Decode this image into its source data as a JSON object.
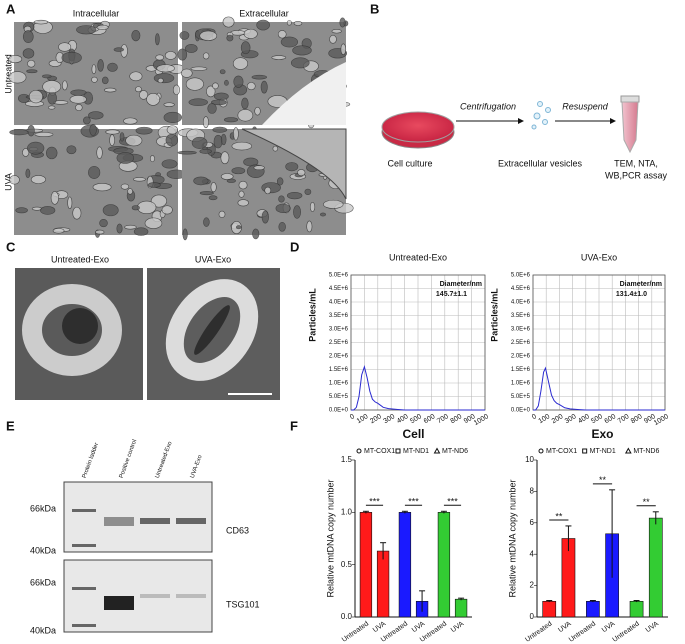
{
  "panels": {
    "a": {
      "label": "A",
      "columns": [
        "Intracellular",
        "Extracellular"
      ],
      "rows": [
        "Untreated",
        "UVA"
      ]
    },
    "b": {
      "label": "B",
      "steps": [
        "Cell culture",
        "Extracellular vesicles",
        "TEM, NTA,",
        "WB,PCR assay"
      ],
      "arrows": [
        "Centrifugation",
        "Resuspend"
      ]
    },
    "c": {
      "label": "C",
      "titles": [
        "Untreated-Exo",
        "UVA-Exo"
      ]
    },
    "d": {
      "label": "D"
    },
    "e": {
      "label": "E",
      "lanes": [
        "Protein ladder",
        "Positive control",
        "Untreated-Exo",
        "UVA-Exo"
      ],
      "markers": [
        "66kDa",
        "40kDa"
      ],
      "blots": [
        "CD63",
        "TSG101"
      ]
    },
    "f": {
      "label": "F"
    }
  },
  "chart_data": [
    {
      "type": "line",
      "title": "Untreated-Exo",
      "y_label": "Particles/mL",
      "annotation": [
        "Diameter/nm",
        "145.7±1.1"
      ],
      "color": "#2a2ad0",
      "x": [
        0,
        20,
        40,
        60,
        80,
        100,
        120,
        140,
        160,
        180,
        200,
        240,
        280,
        350,
        400,
        500,
        1000
      ],
      "values": [
        0,
        0,
        100000,
        500000,
        1300000,
        1600000,
        1200000,
        700000,
        400000,
        300000,
        250000,
        100000,
        50000,
        20000,
        0,
        0,
        0
      ],
      "xlim": [
        0,
        1000
      ],
      "xticks": [
        0,
        100,
        200,
        300,
        400,
        500,
        600,
        700,
        800,
        900,
        1000
      ],
      "ylim": [
        0,
        5000000
      ],
      "yticks": [
        {
          "value": 0,
          "label": "0.0E+0"
        },
        {
          "value": 500000,
          "label": "5.0E+5"
        },
        {
          "value": 1000000,
          "label": "1.0E+6"
        },
        {
          "value": 1500000,
          "label": "1.5E+6"
        },
        {
          "value": 2000000,
          "label": "2.0E+6"
        },
        {
          "value": 2500000,
          "label": "2.5E+6"
        },
        {
          "value": 3000000,
          "label": "3.0E+6"
        },
        {
          "value": 3500000,
          "label": "3.5E+6"
        },
        {
          "value": 4000000,
          "label": "4.0E+6"
        },
        {
          "value": 4500000,
          "label": "4.5E+6"
        },
        {
          "value": 5000000,
          "label": "5.0E+6"
        }
      ],
      "grid": true
    },
    {
      "type": "line",
      "title": "UVA-Exo",
      "y_label": "Particles/mL",
      "annotation": [
        "Diameter/nm",
        "131.4±1.0"
      ],
      "color": "#2a2ad0",
      "x": [
        0,
        20,
        40,
        60,
        80,
        95,
        120,
        140,
        160,
        180,
        200,
        240,
        280,
        350,
        400,
        500,
        1000
      ],
      "values": [
        0,
        0,
        150000,
        700000,
        1400000,
        1550000,
        1000000,
        550000,
        350000,
        250000,
        200000,
        80000,
        40000,
        15000,
        0,
        0,
        0
      ],
      "xlim": [
        0,
        1000
      ],
      "xticks": [
        0,
        100,
        200,
        300,
        400,
        500,
        600,
        700,
        800,
        900,
        1000
      ],
      "ylim": [
        0,
        5000000
      ],
      "yticks": [
        {
          "value": 0,
          "label": "0.0E+0"
        },
        {
          "value": 500000,
          "label": "5.0E+5"
        },
        {
          "value": 1000000,
          "label": "1.0E+6"
        },
        {
          "value": 1500000,
          "label": "1.5E+6"
        },
        {
          "value": 2000000,
          "label": "2.0E+6"
        },
        {
          "value": 2500000,
          "label": "2.5E+6"
        },
        {
          "value": 3000000,
          "label": "3.0E+6"
        },
        {
          "value": 3500000,
          "label": "3.5E+6"
        },
        {
          "value": 4000000,
          "label": "4.0E+6"
        },
        {
          "value": 4500000,
          "label": "4.5E+6"
        },
        {
          "value": 5000000,
          "label": "5.0E+6"
        }
      ],
      "grid": true
    },
    {
      "type": "bar",
      "title": "Cell",
      "y_label": "Relative mtDNA copy number",
      "categories": [
        "Untreated",
        "UVA"
      ],
      "series": [
        {
          "name": "MT-COX1",
          "color": "#ff1a1a",
          "marker": "circle",
          "values": [
            1.0,
            0.63
          ],
          "errors": [
            0.01,
            0.08
          ]
        },
        {
          "name": "MT-ND1",
          "color": "#1a1aff",
          "marker": "square",
          "values": [
            1.0,
            0.15
          ],
          "errors": [
            0.01,
            0.1
          ]
        },
        {
          "name": "MT-ND6",
          "color": "#33cc33",
          "marker": "triangle",
          "values": [
            1.0,
            0.17
          ],
          "errors": [
            0.01,
            0.01
          ]
        }
      ],
      "significance": [
        "***",
        "***",
        "***"
      ],
      "ylim": [
        0,
        1.5
      ],
      "yticks": [
        {
          "value": 0,
          "label": "0.0"
        },
        0.5,
        {
          "value": 1,
          "label": "1.0"
        },
        1.5
      ]
    },
    {
      "type": "bar",
      "title": "Exo",
      "y_label": "Relative mtDNA copy number",
      "categories": [
        "Untreated",
        "UVA"
      ],
      "series": [
        {
          "name": "MT-COX1",
          "color": "#ff1a1a",
          "marker": "circle",
          "values": [
            1.0,
            5.0
          ],
          "errors": [
            0.05,
            0.8
          ]
        },
        {
          "name": "MT-ND1",
          "color": "#1a1aff",
          "marker": "square",
          "values": [
            1.0,
            5.3
          ],
          "errors": [
            0.05,
            2.8
          ]
        },
        {
          "name": "MT-ND6",
          "color": "#33cc33",
          "marker": "triangle",
          "values": [
            1.0,
            6.3
          ],
          "errors": [
            0.05,
            0.4
          ]
        }
      ],
      "significance": [
        "**",
        "**",
        "**"
      ],
      "ylim": [
        0,
        10
      ],
      "yticks": [
        0,
        2,
        4,
        6,
        8,
        10
      ]
    }
  ]
}
